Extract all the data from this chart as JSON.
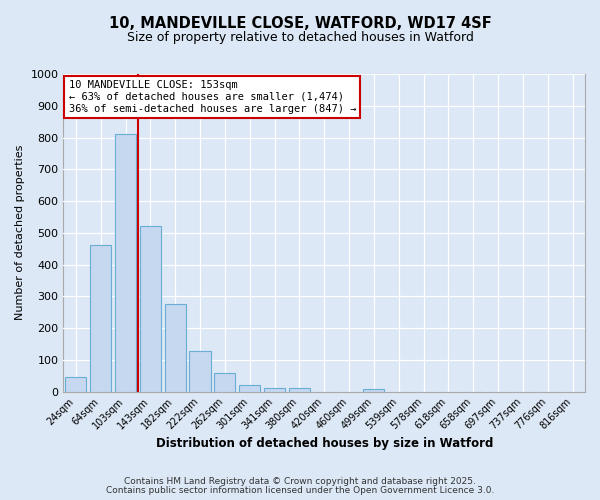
{
  "title1": "10, MANDEVILLE CLOSE, WATFORD, WD17 4SF",
  "title2": "Size of property relative to detached houses in Watford",
  "xlabel": "Distribution of detached houses by size in Watford",
  "ylabel": "Number of detached properties",
  "categories": [
    "24sqm",
    "64sqm",
    "103sqm",
    "143sqm",
    "182sqm",
    "222sqm",
    "262sqm",
    "301sqm",
    "341sqm",
    "380sqm",
    "420sqm",
    "460sqm",
    "499sqm",
    "539sqm",
    "578sqm",
    "618sqm",
    "658sqm",
    "697sqm",
    "737sqm",
    "776sqm",
    "816sqm"
  ],
  "values": [
    47,
    460,
    812,
    522,
    277,
    127,
    59,
    22,
    10,
    10,
    0,
    0,
    8,
    0,
    0,
    0,
    0,
    0,
    0,
    0,
    0
  ],
  "bar_color": "#c5d8ef",
  "bar_edge_color": "#6aaed6",
  "background_color": "#dce8f5",
  "plot_bg_color": "#dce8f5",
  "grid_color": "#ffffff",
  "vline_color": "#cc0000",
  "vline_x": 2.5,
  "annotation_text": "10 MANDEVILLE CLOSE: 153sqm\n← 63% of detached houses are smaller (1,474)\n36% of semi-detached houses are larger (847) →",
  "annotation_box_edgecolor": "#cc0000",
  "ylim": [
    0,
    1000
  ],
  "yticks": [
    0,
    100,
    200,
    300,
    400,
    500,
    600,
    700,
    800,
    900,
    1000
  ],
  "footnote1": "Contains HM Land Registry data © Crown copyright and database right 2025.",
  "footnote2": "Contains public sector information licensed under the Open Government Licence 3.0."
}
